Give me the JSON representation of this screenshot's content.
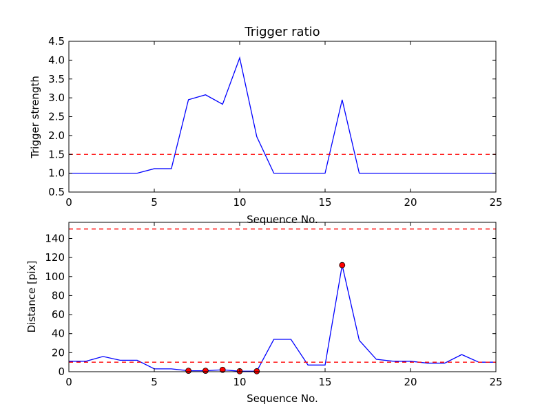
{
  "chart_data": [
    {
      "type": "line",
      "title": "Trigger ratio",
      "xlabel": "Sequence No.",
      "ylabel": "Trigger strength",
      "xlim": [
        0,
        25
      ],
      "ylim": [
        0.5,
        4.5
      ],
      "xticks": [
        "0",
        "5",
        "10",
        "15",
        "20",
        "25"
      ],
      "yticks": [
        "0.5",
        "1.0",
        "1.5",
        "2.0",
        "2.5",
        "3.0",
        "3.5",
        "4.0",
        "4.5"
      ],
      "grid": false,
      "series": [
        {
          "color": "#0000ff",
          "x": [
            0,
            1,
            2,
            3,
            4,
            5,
            6,
            7,
            8,
            9,
            10,
            11,
            12,
            13,
            14,
            15,
            16,
            17,
            18,
            19,
            20,
            21,
            22,
            23,
            24,
            25
          ],
          "values": [
            1.0,
            1.0,
            1.0,
            1.0,
            1.0,
            1.12,
            1.12,
            2.95,
            3.08,
            2.83,
            4.06,
            1.97,
            1.0,
            1.0,
            1.0,
            1.0,
            2.95,
            1.0,
            1.0,
            1.0,
            1.0,
            1.0,
            1.0,
            1.0,
            1.0,
            1.0
          ]
        }
      ],
      "hlines": [
        {
          "y": 1.5,
          "color": "#ff0000",
          "style": "dashed"
        }
      ]
    },
    {
      "type": "line",
      "title": "",
      "xlabel": "Sequence No.",
      "ylabel": "Distance [pix]",
      "xlim": [
        0,
        25
      ],
      "ylim": [
        0,
        157
      ],
      "xticks": [
        "0",
        "5",
        "10",
        "15",
        "20",
        "25"
      ],
      "yticks": [
        "0",
        "20",
        "40",
        "60",
        "80",
        "100",
        "120",
        "140"
      ],
      "grid": false,
      "series": [
        {
          "color": "#0000ff",
          "x": [
            0,
            1,
            2,
            3,
            4,
            5,
            6,
            7,
            8,
            9,
            10,
            11,
            12,
            13,
            14,
            15,
            16,
            17,
            18,
            19,
            20,
            21,
            22,
            23,
            24,
            25
          ],
          "values": [
            11,
            11,
            16,
            12,
            12,
            3,
            3,
            1,
            1,
            2,
            0.5,
            0.5,
            34,
            34,
            7,
            7,
            112,
            33,
            13,
            11,
            11,
            9,
            9,
            18,
            10,
            10
          ]
        }
      ],
      "markers": {
        "color": "#ff0000",
        "x": [
          7,
          8,
          9,
          10,
          11,
          16
        ],
        "values": [
          1,
          1,
          2,
          0.5,
          0.5,
          112
        ]
      },
      "hlines": [
        {
          "y": 10,
          "color": "#ff0000",
          "style": "dashed"
        },
        {
          "y": 150,
          "color": "#ff0000",
          "style": "dashed"
        }
      ]
    }
  ]
}
